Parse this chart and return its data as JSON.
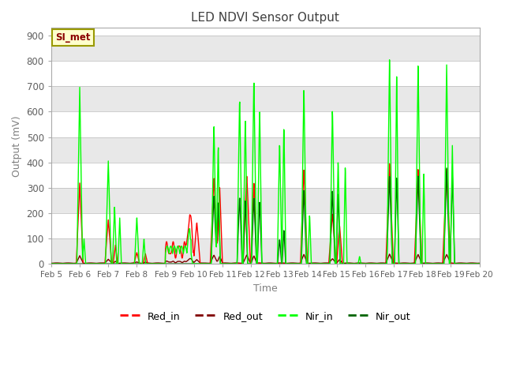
{
  "title": "LED NDVI Sensor Output",
  "xlabel": "Time",
  "ylabel": "Output (mV)",
  "ylim": [
    0,
    930
  ],
  "yticks": [
    0,
    100,
    200,
    300,
    400,
    500,
    600,
    700,
    800,
    900
  ],
  "xlim": [
    0,
    15
  ],
  "xtick_labels": [
    "Feb 5",
    "Feb 6",
    "Feb 7",
    "Feb 8",
    "Feb 9",
    "Feb 10",
    "Feb 11",
    "Feb 12",
    "Feb 13",
    "Feb 14",
    "Feb 15",
    "Feb 16",
    "Feb 17",
    "Feb 18",
    "Feb 19",
    "Feb 20"
  ],
  "legend_label": "SI_met",
  "colors": {
    "red_in": "#ff0000",
    "red_out": "#800000",
    "nir_in": "#00ff00",
    "nir_out": "#006400",
    "bg_light": "#e8e8e8",
    "bg_dark": "#d0d0d0",
    "si_met_bg": "#ffffcc",
    "si_met_border": "#999900",
    "title_color": "#404040",
    "axis_color": "#808080",
    "tick_color": "#606060"
  },
  "line_width": 1.0,
  "figsize": [
    6.4,
    4.8
  ],
  "dpi": 100
}
